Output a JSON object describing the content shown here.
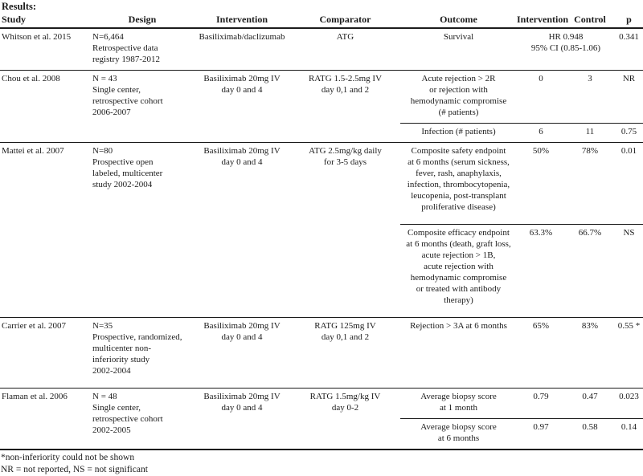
{
  "page": {
    "title": "Results:"
  },
  "table": {
    "headers": [
      "Study",
      "Design",
      "Intervention",
      "Comparator",
      "Outcome",
      "Intervention",
      "Control",
      "p"
    ],
    "rows": [
      {
        "study": "Whitson et al. 2015",
        "design": "N=6,464\nRetrospective data\nregistry 1987-2012",
        "intervention": "Basiliximab/daclizumab",
        "comparator": "ATG",
        "outcomes": [
          {
            "outcome": "Survival",
            "result": "HR 0.948\n95% CI (0.85-1.06)",
            "p": "0.341"
          }
        ]
      },
      {
        "study": "Chou et al. 2008",
        "design": "N = 43\nSingle center,\nretrospective cohort\n2006-2007",
        "intervention": "Basiliximab 20mg IV\nday 0 and 4",
        "comparator": "RATG 1.5-2.5mg IV\nday 0,1 and 2",
        "outcomes": [
          {
            "outcome": "Acute rejection > 2R\nor rejection with\nhemodynamic compromise\n(# patients)",
            "intervention": "0",
            "control": "3",
            "p": "NR"
          },
          {
            "outcome": "Infection (# patients)",
            "intervention": "6",
            "control": "11",
            "p": "0.75"
          }
        ]
      },
      {
        "study": "Mattei et al. 2007",
        "design": "N=80\nProspective open\nlabeled, multicenter\nstudy 2002-2004",
        "intervention": "Basiliximab 20mg IV\nday 0 and 4",
        "comparator": "ATG 2.5mg/kg daily\nfor 3-5 days",
        "outcomes": [
          {
            "outcome": "Composite safety endpoint\nat 6 months (serum sickness,\nfever, rash, anaphylaxis,\ninfection, thrombocytopenia,\nleucopenia, post-transplant\nproliferative disease)",
            "intervention": "50%",
            "control": "78%",
            "p": "0.01"
          },
          {
            "outcome": "Composite efficacy endpoint\nat 6 months (death, graft loss,\nacute rejection > 1B,\nacute rejection with\nhemodynamic compromise\nor treated with antibody\ntherapy)",
            "intervention": "63.3%",
            "control": "66.7%",
            "p": "NS"
          }
        ]
      },
      {
        "study": "Carrier et al. 2007",
        "design": "N=35\nProspective, randomized,\nmulticenter non-\ninferiority study\n2002-2004",
        "intervention": "Basiliximab 20mg IV\nday 0 and 4",
        "comparator": "RATG 125mg IV\nday 0,1 and 2",
        "outcomes": [
          {
            "outcome": "Rejection > 3A at 6 months",
            "intervention": "65%",
            "control": "83%",
            "p": "0.55 *"
          }
        ]
      },
      {
        "study": "Flaman et al. 2006",
        "design": "N = 48\nSingle center,\nretrospective cohort\n2002-2005",
        "intervention": "Basiliximab 20mg IV\nday 0 and 4",
        "comparator": "RATG 1.5mg/kg IV\nday 0-2",
        "outcomes": [
          {
            "outcome": "Average biopsy score\nat 1 month",
            "intervention": "0.79",
            "control": "0.47",
            "p": "0.023"
          },
          {
            "outcome": "Average biopsy score\nat 6 months",
            "intervention": "0.97",
            "control": "0.58",
            "p": "0.14"
          }
        ]
      }
    ]
  },
  "footnotes": [
    "*non-inferiority could not be shown",
    "NR = not reported, NS = not significant"
  ]
}
